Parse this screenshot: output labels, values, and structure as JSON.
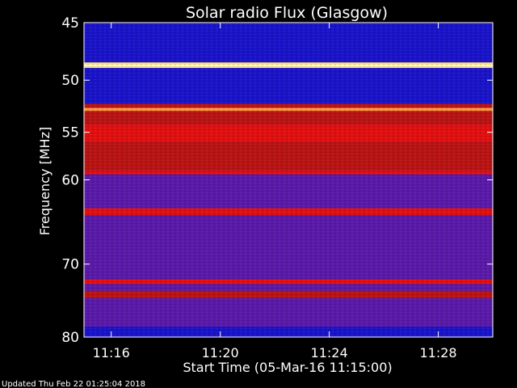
{
  "chart_data": {
    "type": "heatmap",
    "title": "Solar radio Flux (Glasgow)",
    "xlabel": "Start Time (05-Mar-16 11:15:00)",
    "ylabel": "Frequency [MHz]",
    "x_ticks": [
      "11:16",
      "11:20",
      "11:24",
      "11:28"
    ],
    "x_tick_minutes": [
      1,
      5,
      9,
      13
    ],
    "x_range_minutes": [
      0,
      15
    ],
    "y_ticks": [
      45,
      50,
      55,
      60,
      70,
      80
    ],
    "y_range_mhz": [
      45,
      80
    ],
    "y_scale": "log",
    "colormap": "blue-red-yellow-white",
    "colors": {
      "background": "#000000",
      "low": "#1010c0",
      "mid": "#cc1010",
      "high": "#ffff80",
      "axis": "#ffffff"
    },
    "bands": [
      {
        "from": 45.0,
        "to": 45.3,
        "level": "low"
      },
      {
        "from": 45.3,
        "to": 48.4,
        "level": "low"
      },
      {
        "from": 48.4,
        "to": 48.6,
        "level": "high"
      },
      {
        "from": 48.6,
        "to": 48.75,
        "level": "white"
      },
      {
        "from": 48.75,
        "to": 48.9,
        "level": "high"
      },
      {
        "from": 48.9,
        "to": 49.4,
        "level": "low"
      },
      {
        "from": 49.4,
        "to": 51.4,
        "level": "low"
      },
      {
        "from": 51.4,
        "to": 52.2,
        "level": "low"
      },
      {
        "from": 52.2,
        "to": 52.6,
        "level": "mid"
      },
      {
        "from": 52.6,
        "to": 52.9,
        "level": "orange"
      },
      {
        "from": 52.9,
        "to": 54.2,
        "level": "mid"
      },
      {
        "from": 54.2,
        "to": 56.0,
        "level": "bright-red"
      },
      {
        "from": 56.0,
        "to": 59.0,
        "level": "mid"
      },
      {
        "from": 59.0,
        "to": 59.4,
        "level": "bright-red"
      },
      {
        "from": 59.4,
        "to": 63.2,
        "level": "purple"
      },
      {
        "from": 63.2,
        "to": 64.0,
        "level": "bright-red"
      },
      {
        "from": 64.0,
        "to": 72.0,
        "level": "purple"
      },
      {
        "from": 72.0,
        "to": 72.6,
        "level": "bright-red"
      },
      {
        "from": 72.6,
        "to": 73.5,
        "level": "purple"
      },
      {
        "from": 73.5,
        "to": 74.5,
        "level": "mid"
      },
      {
        "from": 74.5,
        "to": 78.5,
        "level": "purple"
      },
      {
        "from": 78.5,
        "to": 80.0,
        "level": "low"
      }
    ]
  },
  "footer": {
    "updated": "Updated Thu Feb 22 01:25:04 2018"
  }
}
